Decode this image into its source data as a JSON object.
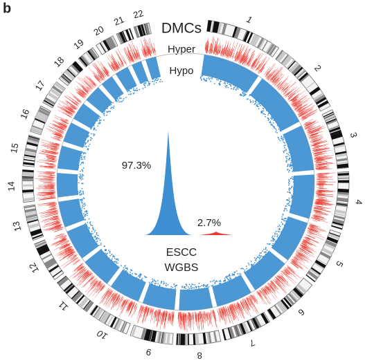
{
  "panel_label": "b",
  "chart_data": {
    "type": "circos",
    "title": "DMCs",
    "track_labels": [
      "Hyper",
      "Hypo"
    ],
    "categories": [
      "1",
      "2",
      "3",
      "4",
      "5",
      "6",
      "7",
      "8",
      "9",
      "10",
      "11",
      "12",
      "13",
      "14",
      "15",
      "16",
      "17",
      "18",
      "19",
      "20",
      "21",
      "22"
    ],
    "values": [
      249,
      243,
      198,
      191,
      181,
      171,
      159,
      146,
      141,
      136,
      135,
      134,
      115,
      107,
      102,
      90,
      81,
      78,
      59,
      63,
      48,
      51
    ],
    "track_colors": [
      "#e8392f",
      "#3d8fd1"
    ],
    "density": {
      "values": [
        97.3,
        2.7
      ],
      "value_labels": [
        "97.3%",
        "2.7%"
      ],
      "colors": [
        "#3d8fd1",
        "#e8392f"
      ]
    },
    "center_label": [
      "ESCC",
      "WGBS"
    ]
  }
}
